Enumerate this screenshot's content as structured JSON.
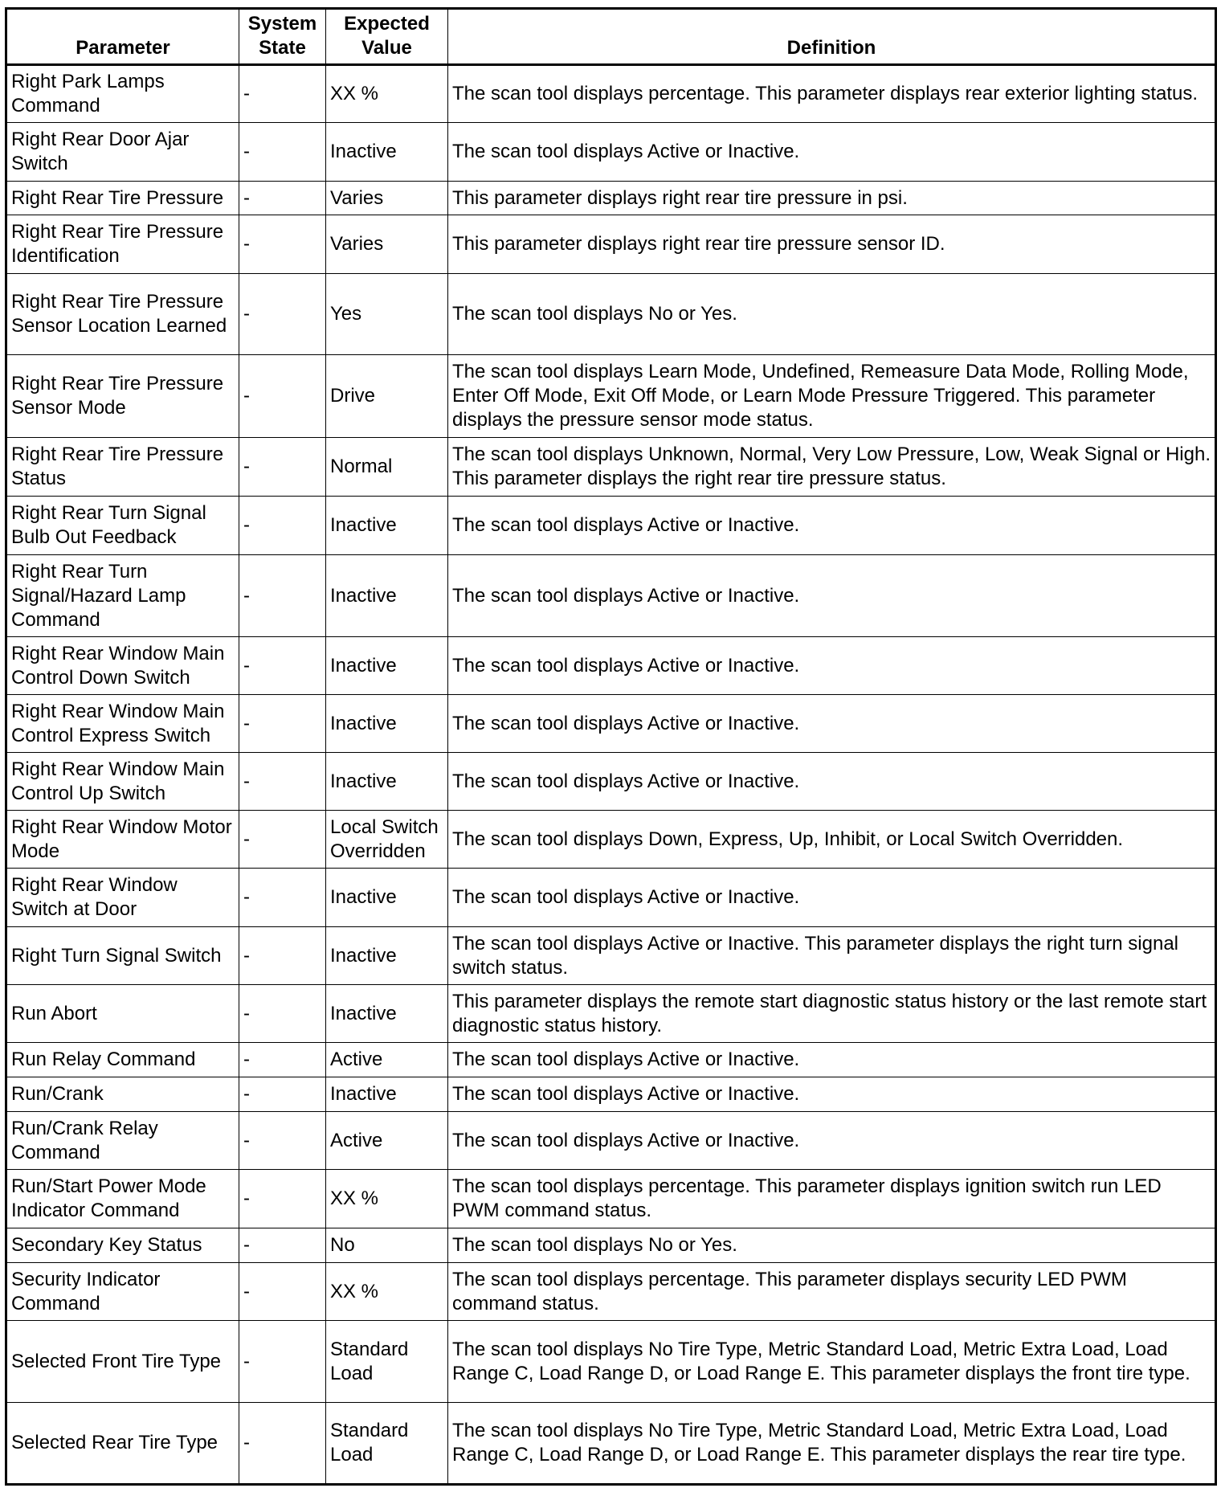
{
  "headers": {
    "parameter": "Parameter",
    "system_state": "System State",
    "expected_value": "Expected Value",
    "definition": "Definition"
  },
  "rows": [
    {
      "parameter": "Right Park Lamps Command",
      "state": "-",
      "value": "XX %",
      "definition": "The scan tool displays percentage. This parameter displays rear exterior lighting status."
    },
    {
      "parameter": "Right Rear Door Ajar Switch",
      "state": "-",
      "value": "Inactive",
      "definition": "The scan tool displays Active or Inactive."
    },
    {
      "parameter": "Right Rear Tire Pressure",
      "state": "-",
      "value": "Varies",
      "definition": "This parameter displays right rear tire pressure in psi."
    },
    {
      "parameter": "Right Rear Tire Pressure Identification",
      "state": "-",
      "value": "Varies",
      "definition": "This parameter displays right rear tire pressure sensor ID."
    },
    {
      "parameter": "Right Rear Tire Pressure Sensor Location Learned",
      "state": "-",
      "value": "Yes",
      "definition": "The scan tool displays No or Yes."
    },
    {
      "parameter": "Right Rear Tire Pressure Sensor Mode",
      "state": "-",
      "value": "Drive",
      "definition": "The scan tool displays Learn Mode, Undefined, Remeasure Data Mode, Rolling Mode, Enter Off Mode, Exit Off Mode, or Learn Mode Pressure Triggered. This parameter displays the pressure sensor mode status."
    },
    {
      "parameter": "Right Rear Tire Pressure Status",
      "state": "-",
      "value": "Normal",
      "definition": "The scan tool displays Unknown, Normal, Very Low Pressure, Low, Weak Signal or High. This parameter displays the right rear tire pressure status."
    },
    {
      "parameter": "Right Rear Turn Signal Bulb Out Feedback",
      "state": "-",
      "value": "Inactive",
      "definition": "The scan tool displays Active or Inactive."
    },
    {
      "parameter": "Right Rear Turn Signal/Hazard Lamp Command",
      "state": "-",
      "value": "Inactive",
      "definition": "The scan tool displays Active or Inactive."
    },
    {
      "parameter": "Right Rear Window Main Control Down Switch",
      "state": "-",
      "value": "Inactive",
      "definition": "The scan tool displays Active or Inactive."
    },
    {
      "parameter": "Right Rear Window Main Control Express Switch",
      "state": "-",
      "value": "Inactive",
      "definition": "The scan tool displays Active or Inactive."
    },
    {
      "parameter": "Right Rear Window Main Control Up Switch",
      "state": "-",
      "value": "Inactive",
      "definition": "The scan tool displays Active or Inactive."
    },
    {
      "parameter": "Right Rear Window Motor Mode",
      "state": "-",
      "value": "Local Switch Overridden",
      "definition": "The scan tool displays Down, Express, Up, Inhibit, or Local Switch Overridden."
    },
    {
      "parameter": "Right Rear Window Switch at Door",
      "state": "-",
      "value": "Inactive",
      "definition": "The scan tool displays Active or Inactive."
    },
    {
      "parameter": "Right Turn Signal Switch",
      "state": "-",
      "value": "Inactive",
      "definition": "The scan tool displays Active or Inactive. This parameter displays the right turn signal switch status."
    },
    {
      "parameter": "Run Abort",
      "state": "-",
      "value": "Inactive",
      "definition": "This parameter displays the remote start diagnostic status history or the last remote start diagnostic status history."
    },
    {
      "parameter": "Run Relay Command",
      "state": "-",
      "value": "Active",
      "definition": "The scan tool displays Active or Inactive."
    },
    {
      "parameter": "Run/Crank",
      "state": "-",
      "value": "Inactive",
      "definition": "The scan tool displays Active or Inactive."
    },
    {
      "parameter": "Run/Crank Relay Command",
      "state": "-",
      "value": "Active",
      "definition": "The scan tool displays Active or Inactive."
    },
    {
      "parameter": "Run/Start Power Mode Indicator Command",
      "state": "-",
      "value": "XX %",
      "definition": "The scan tool displays percentage. This parameter displays ignition switch run LED PWM command status."
    },
    {
      "parameter": "Secondary Key Status",
      "state": "-",
      "value": "No",
      "definition": "The scan tool displays No or Yes."
    },
    {
      "parameter": "Security Indicator Command",
      "state": "-",
      "value": "XX %",
      "definition": "The scan tool displays percentage. This parameter displays security LED PWM command status."
    },
    {
      "parameter": "Selected Front Tire Type",
      "state": "-",
      "value": "Standard Load",
      "definition": "The scan tool displays No Tire Type, Metric Standard Load, Metric Extra Load, Load Range C, Load Range D, or Load Range E. This parameter displays the front tire type."
    },
    {
      "parameter": "Selected Rear Tire Type",
      "state": "-",
      "value": "Standard Load",
      "definition": "The scan tool displays No Tire Type, Metric Standard Load, Metric Extra Load, Load Range C, Load Range D, or Load Range E. This parameter displays the rear tire type."
    }
  ]
}
